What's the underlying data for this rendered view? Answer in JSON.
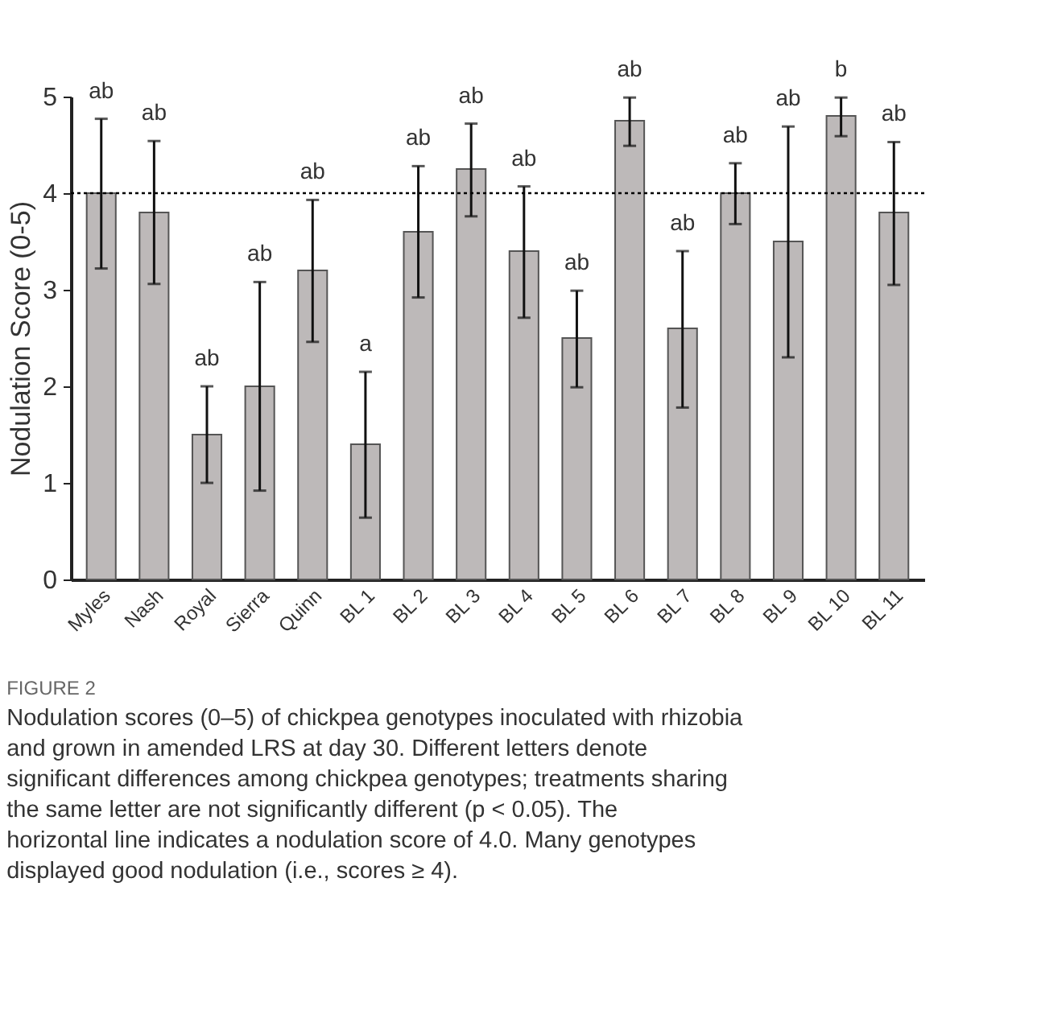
{
  "chart_data": {
    "type": "bar",
    "title": "FIGURE 2",
    "subtitle": "Nodulation scores (0–5) of chickpea genotypes inoculated with rhizobia and grown in amended LRS at day 30. Different letters denote significant differences among chickpea genotypes; treatments sharing the same letter are not significantly different (p < 0.05). The horizontal line indicates a nodulation score of 4.0. Many genotypes displayed good nodulation (i.e., scores ≥ 4).",
    "ylabel": "Nodulation Score (0-5)",
    "categories": [
      "Myles",
      "Nash",
      "Royal",
      "Sierra",
      "Quinn",
      "BL 1",
      "BL 2",
      "BL 3",
      "BL 4",
      "BL 5",
      "BL 6",
      "BL 7",
      "BL 8",
      "BL 9",
      "BL 10",
      "BL 11"
    ],
    "values": [
      4.0,
      3.8,
      1.5,
      2.0,
      3.2,
      1.4,
      3.6,
      4.25,
      3.4,
      2.5,
      4.75,
      2.6,
      4.0,
      3.5,
      4.8,
      3.8
    ],
    "errors": [
      [
        3.22,
        4.77
      ],
      [
        3.06,
        4.54
      ],
      [
        1.0,
        2.0
      ],
      [
        0.92,
        3.08
      ],
      [
        2.46,
        3.93
      ],
      [
        0.64,
        2.15
      ],
      [
        2.92,
        4.28
      ],
      [
        3.76,
        4.72
      ],
      [
        2.71,
        4.07
      ],
      [
        1.99,
        2.99
      ],
      [
        4.49,
        4.99
      ],
      [
        1.78,
        3.4
      ],
      [
        3.68,
        4.31
      ],
      [
        2.3,
        4.69
      ],
      [
        4.59,
        4.99
      ],
      [
        3.05,
        4.53
      ]
    ],
    "color": "#bdb9b9",
    "ylim": [
      0,
      5
    ],
    "yticks": [
      0,
      1,
      2,
      3,
      4,
      5
    ],
    "grid": false,
    "ref_lines": [
      {
        "axis": "y",
        "value": 4.0,
        "color": "#000000",
        "line_style": "dotted"
      }
    ],
    "annotations": [
      {
        "text": "ab",
        "x": "Myles",
        "y": 4.77
      },
      {
        "text": "ab",
        "x": "Nash",
        "y": 4.54
      },
      {
        "text": "ab",
        "x": "Royal",
        "y": 2.0
      },
      {
        "text": "ab",
        "x": "Sierra",
        "y": 3.08
      },
      {
        "text": "ab",
        "x": "Quinn",
        "y": 3.93
      },
      {
        "text": "a",
        "x": "BL 1",
        "y": 2.15
      },
      {
        "text": "ab",
        "x": "BL 2",
        "y": 4.28
      },
      {
        "text": "ab",
        "x": "BL 3",
        "y": 4.72
      },
      {
        "text": "ab",
        "x": "BL 4",
        "y": 4.07
      },
      {
        "text": "ab",
        "x": "BL 5",
        "y": 2.99
      },
      {
        "text": "ab",
        "x": "BL 6",
        "y": 4.99
      },
      {
        "text": "ab",
        "x": "BL 7",
        "y": 3.4
      },
      {
        "text": "ab",
        "x": "BL 8",
        "y": 4.31
      },
      {
        "text": "ab",
        "x": "BL 9",
        "y": 4.69
      },
      {
        "text": "b",
        "x": "BL 10",
        "y": 4.99
      },
      {
        "text": "ab",
        "x": "BL 11",
        "y": 4.53
      }
    ]
  }
}
